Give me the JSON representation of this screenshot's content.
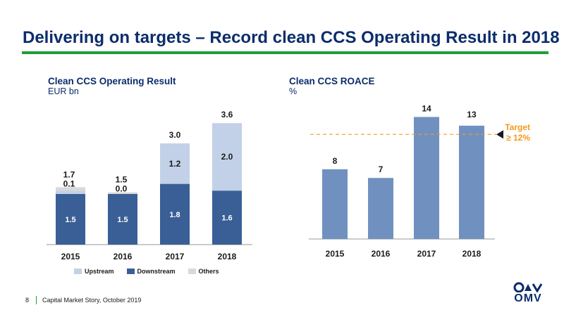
{
  "title": "Delivering on targets – Record clean CCS Operating Result in 2018",
  "footer": {
    "page": "8",
    "text": "Capital Market Story, October 2019"
  },
  "logo": {
    "text": "OMV"
  },
  "colors": {
    "upstream": "#c2d1e7",
    "downstream": "#3a5f96",
    "others": "#d9d9d9",
    "roace": "#7091c0",
    "target": "#f39a1e",
    "title": "#0b2d6b",
    "accent": "#1f9e3b"
  },
  "chart_data": [
    {
      "type": "bar",
      "stacked": true,
      "title": "Clean CCS Operating Result",
      "subtitle": "EUR bn",
      "categories": [
        "2015",
        "2016",
        "2017",
        "2018"
      ],
      "series": [
        {
          "name": "Downstream",
          "values": [
            1.5,
            1.5,
            1.8,
            1.6
          ],
          "labels": [
            "1.5",
            "1.5",
            "1.8",
            "1.6"
          ]
        },
        {
          "name": "Upstream",
          "values": [
            0.1,
            0.0,
            1.2,
            2.0
          ],
          "labels": [
            "0.1",
            "0.0",
            "1.2",
            "2.0"
          ]
        },
        {
          "name": "Others",
          "values": [
            0.1,
            0.05,
            0.0,
            0.0
          ],
          "labels": []
        }
      ],
      "totals": [
        "1.7",
        "1.5",
        "3.0",
        "3.6"
      ],
      "ylim": [
        0,
        4.0
      ],
      "legend_position": "bottom",
      "legend": [
        "Upstream",
        "Downstream",
        "Others"
      ]
    },
    {
      "type": "bar",
      "title": "Clean CCS ROACE",
      "subtitle": "%",
      "categories": [
        "2015",
        "2016",
        "2017",
        "2018"
      ],
      "values": [
        8,
        7,
        14,
        13
      ],
      "labels": [
        "8",
        "7",
        "14",
        "13"
      ],
      "ylim": [
        0,
        15
      ],
      "target": {
        "value": 12,
        "label_line1": "Target",
        "label_line2": "≥ 12%"
      }
    }
  ]
}
